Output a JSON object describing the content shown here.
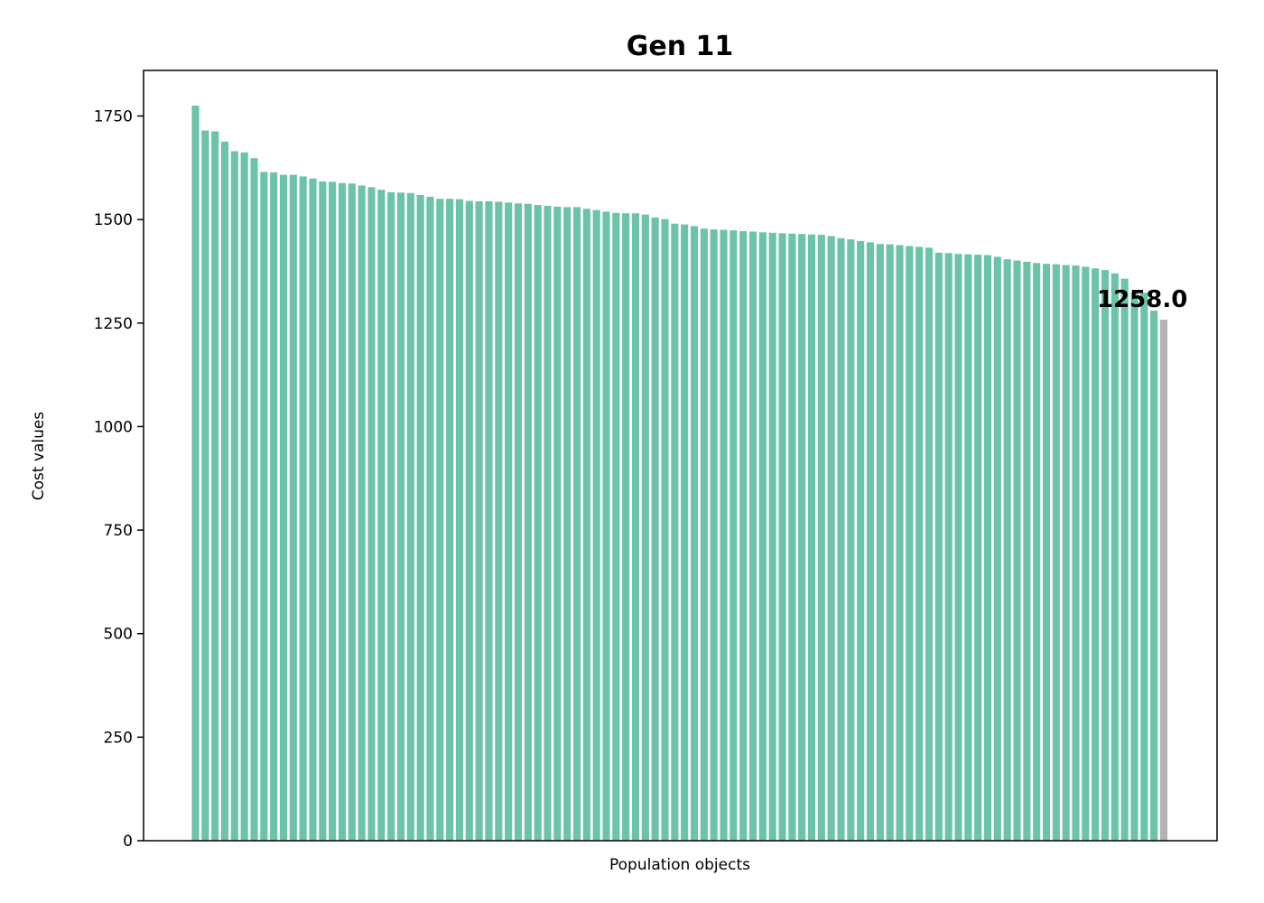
{
  "chart_data": {
    "type": "bar",
    "title": "Gen 11",
    "xlabel": "Population objects",
    "ylabel": "Cost values",
    "ylim": [
      0,
      1860
    ],
    "yticks": [
      0,
      250,
      500,
      750,
      1000,
      1250,
      1500,
      1750
    ],
    "grid": false,
    "legend": "none",
    "bar_color": "#6cc3a9",
    "highlight_color": "#b3b3b3",
    "highlight_index": 99,
    "annotation": "1258.0",
    "values": [
      1775,
      1715,
      1713,
      1688,
      1665,
      1662,
      1648,
      1615,
      1614,
      1608,
      1608,
      1604,
      1599,
      1592,
      1591,
      1588,
      1587,
      1582,
      1578,
      1572,
      1566,
      1565,
      1564,
      1559,
      1555,
      1550,
      1550,
      1549,
      1545,
      1544,
      1544,
      1543,
      1541,
      1539,
      1538,
      1535,
      1533,
      1531,
      1530,
      1530,
      1526,
      1523,
      1519,
      1516,
      1515,
      1515,
      1512,
      1505,
      1501,
      1490,
      1488,
      1484,
      1478,
      1476,
      1475,
      1474,
      1472,
      1471,
      1469,
      1468,
      1467,
      1466,
      1465,
      1464,
      1463,
      1460,
      1455,
      1452,
      1448,
      1445,
      1441,
      1440,
      1438,
      1436,
      1434,
      1432,
      1420,
      1419,
      1417,
      1416,
      1415,
      1414,
      1410,
      1404,
      1401,
      1398,
      1395,
      1393,
      1392,
      1390,
      1389,
      1386,
      1382,
      1378,
      1370,
      1357,
      1325,
      1323,
      1280,
      1258
    ]
  }
}
